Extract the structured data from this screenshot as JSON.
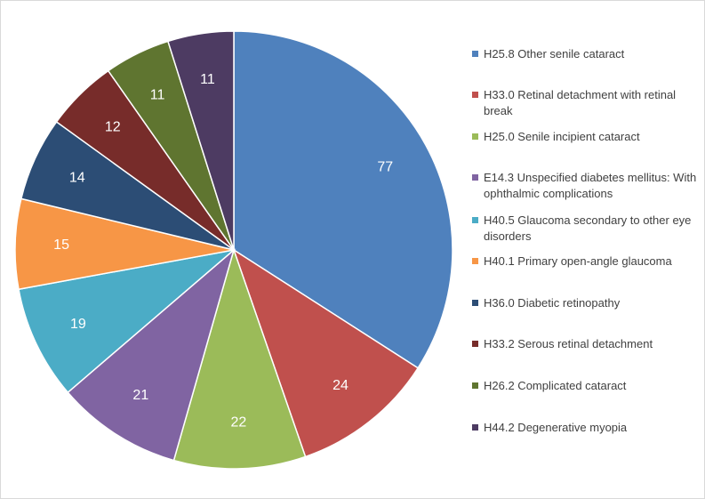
{
  "chart_data": {
    "type": "pie",
    "title": "",
    "categories": [
      "H25.8 Other senile cataract",
      "H33.0 Retinal detachment with retinal break",
      "H25.0 Senile incipient cataract",
      "E14.3 Unspecified diabetes mellitus: With ophthalmic complications",
      "H40.5 Glaucoma secondary to other eye disorders",
      "H40.1 Primary open-angle glaucoma",
      "H36.0 Diabetic retinopathy",
      "H33.2 Serous retinal detachment",
      "H26.2 Complicated cataract",
      "H44.2 Degenerative myopia"
    ],
    "legend_labels": [
      "H25.8 Other senile cataract",
      "H33.0 Retinal detachment with retinal break",
      "H25.0 Senile incipient cataract",
      "E14.3 Unspecified diabetes mellitus: With ophthalmic complications",
      "H40.5 Glaucoma secondary to other eye disorders",
      "H40.1 Primary open-angle glaucoma",
      "H36.0 Diabetic retinopathy",
      "H33.2 Serous retinal detachment",
      "H26.2 Complicated cataract",
      "H44.2 Degenerative myopia"
    ],
    "values": [
      77,
      24,
      22,
      21,
      19,
      15,
      14,
      12,
      11,
      11
    ],
    "data_labels": [
      "77",
      "24",
      "22",
      "21",
      "19",
      "15",
      "14",
      "12",
      "11",
      "11"
    ],
    "colors": [
      "#4f81bd",
      "#c0504d",
      "#9bbb59",
      "#8064a2",
      "#4bacc6",
      "#f79646",
      "#2c4d75",
      "#772c2a",
      "#5f7530",
      "#4d3b62"
    ],
    "start_angle": "12 o'clock",
    "direction": "clockwise",
    "legend_position": "right"
  }
}
